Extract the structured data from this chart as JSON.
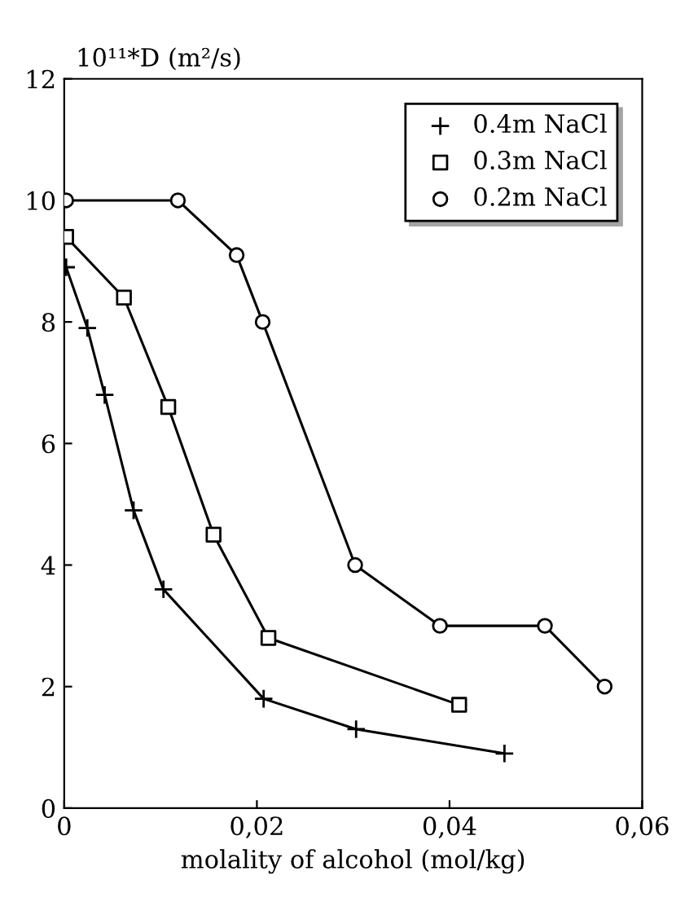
{
  "chart_data": {
    "type": "line",
    "xlabel": "molality of alcohol (mol/kg)",
    "ylabel": "10¹¹*D (m²/s)",
    "series": [
      {
        "name": "0.4m NaCl",
        "color": "#000000",
        "marker": "cross",
        "x": [
          0.0002,
          0.0024,
          0.0042,
          0.0072,
          0.0103,
          0.0207,
          0.0303,
          0.0457
        ],
        "values": [
          8.9,
          7.9,
          6.8,
          4.9,
          3.6,
          1.8,
          1.3,
          0.9
        ]
      },
      {
        "name": "0.3m NaCl",
        "color": "#000000",
        "marker": "square",
        "x": [
          0.0002,
          0.0062,
          0.0108,
          0.0155,
          0.0212,
          0.041
        ],
        "values": [
          9.4,
          8.4,
          6.6,
          4.5,
          2.8,
          1.7
        ]
      },
      {
        "name": "0.2m NaCl",
        "color": "#000000",
        "marker": "circle",
        "x": [
          0.0002,
          0.0118,
          0.0179,
          0.0206,
          0.0302,
          0.039,
          0.0499,
          0.0561
        ],
        "values": [
          10.0,
          10.0,
          9.1,
          8.0,
          4.0,
          3.0,
          3.0,
          2.0
        ]
      }
    ],
    "xlim": [
      0,
      0.06
    ],
    "xticks": [
      0,
      {
        "value": 0.02,
        "label": "0,02"
      },
      {
        "value": 0.04,
        "label": "0,04"
      },
      {
        "value": 0.06,
        "label": "0,06"
      }
    ],
    "ylim": [
      0,
      12
    ],
    "yticks": [
      0,
      2,
      4,
      6,
      8,
      10,
      12
    ],
    "grid": false,
    "legend": "top right",
    "line_style": "solid"
  }
}
